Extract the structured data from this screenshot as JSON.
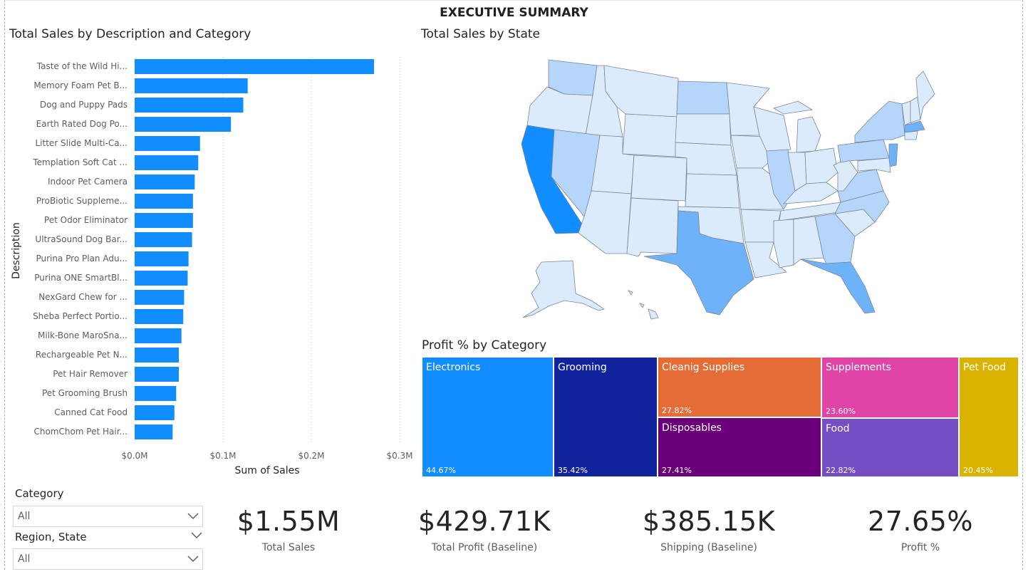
{
  "page": {
    "title": "EXECUTIVE SUMMARY"
  },
  "bar_chart": {
    "title": "Total Sales by Description and Category",
    "chart_data": {
      "type": "bar",
      "orientation": "horizontal",
      "xlabel": "Sum of Sales",
      "ylabel": "Description",
      "xlim": [
        0,
        0.3
      ],
      "x_ticks": [
        "$0.0M",
        "$0.1M",
        "$0.2M",
        "$0.3M"
      ],
      "categories": [
        "Taste of the Wild Hi...",
        "Memory Foam Pet B...",
        "Dog and Puppy Pads",
        "Earth Rated Dog Po...",
        "Litter Slide Multi-Ca...",
        "Templation Soft Cat ...",
        "Indoor Pet Camera",
        "ProBiotic Suppleme...",
        "Pet Odor Eliminator",
        "UltraSound Dog Bar...",
        "Purina Pro Plan Adu...",
        "Purina ONE SmartBl...",
        "NexGard Chew for ...",
        "Sheba Perfect Portio...",
        "Milk-Bone MaroSna...",
        "Rechargeable Pet N...",
        "Pet Hair Remover",
        "Pet Grooming Brush",
        "Canned Cat Food",
        "ChomChom Pet Hair..."
      ],
      "values": [
        0.271,
        0.128,
        0.123,
        0.109,
        0.074,
        0.072,
        0.068,
        0.066,
        0.066,
        0.065,
        0.061,
        0.06,
        0.056,
        0.055,
        0.053,
        0.05,
        0.05,
        0.047,
        0.045,
        0.043
      ],
      "bar_color": "#118DFF",
      "grid": true
    }
  },
  "map": {
    "title": "Total Sales by State",
    "colors": {
      "low": "#DCEBFC",
      "mid": "#B5D6FA",
      "high": "#6EB3FA",
      "top": "#118DFF"
    }
  },
  "treemap": {
    "title": "Profit % by Category",
    "chart_data": {
      "type": "treemap",
      "items": [
        {
          "name": "Electronics",
          "value": "44.67%",
          "color": "#118DFF"
        },
        {
          "name": "Grooming",
          "value": "35.42%",
          "color": "#12239E"
        },
        {
          "name": "Cleanig Supplies",
          "value": "27.82%",
          "color": "#E66C37"
        },
        {
          "name": "Disposables",
          "value": "27.41%",
          "color": "#6B007B"
        },
        {
          "name": "Supplements",
          "value": "23.60%",
          "color": "#E044A7"
        },
        {
          "name": "Food",
          "value": "22.82%",
          "color": "#744EC2"
        },
        {
          "name": "Pet Food",
          "value": "20.45%",
          "color": "#D9B300"
        }
      ]
    }
  },
  "slicers": {
    "category": {
      "label": "Category",
      "value": "All"
    },
    "region_state": {
      "label": "Region, State",
      "value": "All"
    }
  },
  "cards": [
    {
      "value": "$1.55M",
      "label": "Total Sales"
    },
    {
      "value": "$429.71K",
      "label": "Total Profit (Baseline)"
    },
    {
      "value": "$385.15K",
      "label": "Shipping (Baseline)"
    },
    {
      "value": "27.65%",
      "label": "Profit %"
    }
  ]
}
